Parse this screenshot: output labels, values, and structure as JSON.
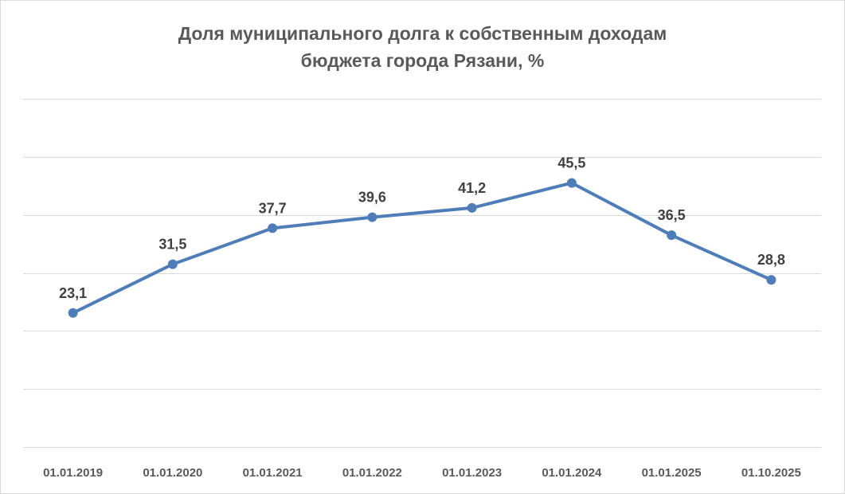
{
  "chart_data": {
    "type": "line",
    "title": "Доля муниципального долга к собственным доходам бюджета города Рязани, %",
    "title_lines": [
      "Доля муниципального долга к собственным доходам",
      "бюджета города Рязани, %"
    ],
    "categories": [
      "01.01.2019",
      "01.01.2020",
      "01.01.2021",
      "01.01.2022",
      "01.01.2023",
      "01.01.2024",
      "01.01.2025",
      "01.10.2025"
    ],
    "values": [
      23.1,
      31.5,
      37.7,
      39.6,
      41.2,
      45.5,
      36.5,
      28.8
    ],
    "value_labels": [
      "23,1",
      "31,5",
      "37,7",
      "39,6",
      "41,2",
      "45,5",
      "36,5",
      "28,8"
    ],
    "ylim": [
      0,
      60
    ],
    "y_grid_step": 10,
    "grid": true,
    "legend": false,
    "xlabel": "",
    "ylabel": "",
    "colors": {
      "line": "#4f7db8",
      "grid": "#d9d9d9",
      "title": "#595959",
      "labels": "#404040"
    }
  }
}
